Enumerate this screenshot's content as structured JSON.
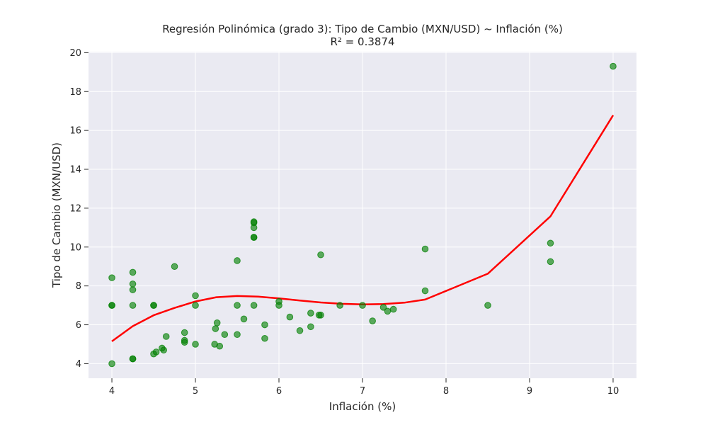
{
  "colors": {
    "background": "#ffffff",
    "plot_background": "#eaeaf2",
    "grid": "#ffffff",
    "points": "#008000",
    "fit_line": "#ff0000",
    "text": "#262626"
  },
  "chart_data": {
    "type": "scatter",
    "title": "Regresión Polinómica (grado 3): Tipo de Cambio (MXN/USD) ~ Inflación (%)",
    "subtitle": "R² = 0.3874",
    "xlabel": "Inflación (%)",
    "ylabel": "Tipo de Cambio (MXN/USD)",
    "xlim": [
      3.72,
      10.28
    ],
    "ylim": [
      3.25,
      20.05
    ],
    "xticks": [
      4,
      5,
      6,
      7,
      8,
      9,
      10
    ],
    "yticks": [
      4,
      6,
      8,
      10,
      12,
      14,
      16,
      18,
      20
    ],
    "grid": true,
    "legend": "none",
    "series": [
      {
        "kind": "scatter",
        "points": [
          [
            4.0,
            4.0
          ],
          [
            4.0,
            7.0
          ],
          [
            4.0,
            7.0
          ],
          [
            4.0,
            8.42
          ],
          [
            4.25,
            4.25
          ],
          [
            4.25,
            4.25
          ],
          [
            4.25,
            7.0
          ],
          [
            4.25,
            7.8
          ],
          [
            4.25,
            8.1
          ],
          [
            4.25,
            8.7
          ],
          [
            4.5,
            4.5
          ],
          [
            4.5,
            7.0
          ],
          [
            4.5,
            7.0
          ],
          [
            4.53,
            4.6
          ],
          [
            4.6,
            4.8
          ],
          [
            4.62,
            4.7
          ],
          [
            4.65,
            5.4
          ],
          [
            4.75,
            9.0
          ],
          [
            4.87,
            5.1
          ],
          [
            4.87,
            5.2
          ],
          [
            4.87,
            5.6
          ],
          [
            5.0,
            5.0
          ],
          [
            5.0,
            7.0
          ],
          [
            5.0,
            7.5
          ],
          [
            5.23,
            5.0
          ],
          [
            5.24,
            5.8
          ],
          [
            5.26,
            6.1
          ],
          [
            5.29,
            4.9
          ],
          [
            5.35,
            5.5
          ],
          [
            5.5,
            5.5
          ],
          [
            5.5,
            7.0
          ],
          [
            5.5,
            9.3
          ],
          [
            5.58,
            6.3
          ],
          [
            5.7,
            7.0
          ],
          [
            5.7,
            10.5
          ],
          [
            5.7,
            10.5
          ],
          [
            5.7,
            11.0
          ],
          [
            5.7,
            11.25
          ],
          [
            5.7,
            11.3
          ],
          [
            5.83,
            5.3
          ],
          [
            5.83,
            6.0
          ],
          [
            6.0,
            7.0
          ],
          [
            6.0,
            7.2
          ],
          [
            6.13,
            6.4
          ],
          [
            6.25,
            5.7
          ],
          [
            6.38,
            5.9
          ],
          [
            6.38,
            6.6
          ],
          [
            6.48,
            6.5
          ],
          [
            6.5,
            6.5
          ],
          [
            6.5,
            9.6
          ],
          [
            6.73,
            7.0
          ],
          [
            7.0,
            7.0
          ],
          [
            7.12,
            6.2
          ],
          [
            7.25,
            6.9
          ],
          [
            7.3,
            6.7
          ],
          [
            7.37,
            6.8
          ],
          [
            7.75,
            7.75
          ],
          [
            7.75,
            9.9
          ],
          [
            8.5,
            7.0
          ],
          [
            9.25,
            9.25
          ],
          [
            9.25,
            10.2
          ],
          [
            10.0,
            19.3
          ]
        ]
      },
      {
        "kind": "line",
        "points": [
          [
            4.0,
            5.15
          ],
          [
            4.25,
            5.93
          ],
          [
            4.5,
            6.49
          ],
          [
            4.75,
            6.87
          ],
          [
            5.0,
            7.2
          ],
          [
            5.25,
            7.42
          ],
          [
            5.5,
            7.48
          ],
          [
            5.75,
            7.45
          ],
          [
            6.0,
            7.36
          ],
          [
            6.25,
            7.25
          ],
          [
            6.5,
            7.15
          ],
          [
            6.75,
            7.08
          ],
          [
            7.0,
            7.05
          ],
          [
            7.25,
            7.07
          ],
          [
            7.5,
            7.14
          ],
          [
            7.75,
            7.3
          ],
          [
            8.5,
            8.63
          ],
          [
            9.25,
            11.58
          ],
          [
            10.0,
            16.78
          ]
        ]
      }
    ]
  }
}
